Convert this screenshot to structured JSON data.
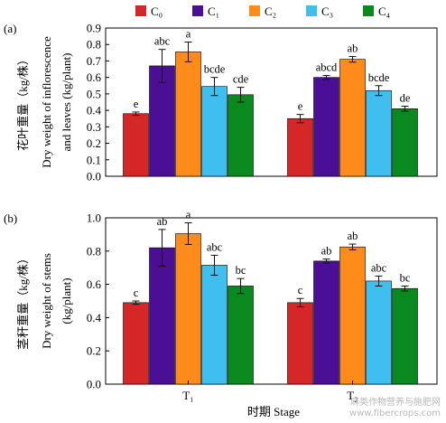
{
  "legend": [
    {
      "name": "C₀",
      "color": "#d62728"
    },
    {
      "name": "C₁",
      "color": "#4b0f96"
    },
    {
      "name": "C₂",
      "color": "#ff8c1a"
    },
    {
      "name": "C₃",
      "color": "#3fbef0"
    },
    {
      "name": "C₄",
      "color": "#0a8a1e"
    }
  ],
  "xlabel": "时期 Stage",
  "watermark": {
    "line1": "麻类作物营养与施肥网",
    "line2": "www.fibercrops.com"
  },
  "chart_data": [
    {
      "type": "bar",
      "panel_label": "(a)",
      "ylabel_cn": "花叶重量（kg/株）",
      "ylabel_en1": "Dry weight of inflorescence",
      "ylabel_en2": "and leaves (kg/plant)",
      "categories": [
        "T₁",
        "T₂"
      ],
      "ylim": [
        0,
        0.9
      ],
      "yticks": [
        "0.0",
        "0.1",
        "0.2",
        "0.3",
        "0.4",
        "0.5",
        "0.6",
        "0.7",
        "0.8",
        "0.9"
      ],
      "series": [
        {
          "name": "C₀",
          "values": [
            0.38,
            0.35
          ],
          "errors": [
            0.01,
            0.025
          ],
          "labels": [
            "e",
            "e"
          ]
        },
        {
          "name": "C₁",
          "values": [
            0.67,
            0.6
          ],
          "errors": [
            0.1,
            0.012
          ],
          "labels": [
            "abc",
            "abcd"
          ]
        },
        {
          "name": "C₂",
          "values": [
            0.755,
            0.71
          ],
          "errors": [
            0.06,
            0.017
          ],
          "labels": [
            "a",
            "ab"
          ]
        },
        {
          "name": "C₃",
          "values": [
            0.545,
            0.52
          ],
          "errors": [
            0.055,
            0.03
          ],
          "labels": [
            "bcde",
            "bcde"
          ]
        },
        {
          "name": "C₄",
          "values": [
            0.495,
            0.41
          ],
          "errors": [
            0.045,
            0.015
          ],
          "labels": [
            "cde",
            "de"
          ]
        }
      ]
    },
    {
      "type": "bar",
      "panel_label": "(b)",
      "ylabel_cn": "茎秆重量（kg/株）",
      "ylabel_en1": "Dry weight of stems",
      "ylabel_en2": "(kg/plant)",
      "categories": [
        "T₁",
        "T₂"
      ],
      "ylim": [
        0,
        1.0
      ],
      "yticks": [
        "0.0",
        "0.2",
        "0.4",
        "0.6",
        "0.8",
        "1.0"
      ],
      "series": [
        {
          "name": "C₀",
          "values": [
            0.49,
            0.49
          ],
          "errors": [
            0.01,
            0.025
          ],
          "labels": [
            "c",
            "c"
          ]
        },
        {
          "name": "C₁",
          "values": [
            0.82,
            0.74
          ],
          "errors": [
            0.11,
            0.012
          ],
          "labels": [
            "ab",
            "ab"
          ]
        },
        {
          "name": "C₂",
          "values": [
            0.905,
            0.825
          ],
          "errors": [
            0.065,
            0.017
          ],
          "labels": [
            "a",
            "ab"
          ]
        },
        {
          "name": "C₃",
          "values": [
            0.715,
            0.62
          ],
          "errors": [
            0.06,
            0.03
          ],
          "labels": [
            "abc",
            "abc"
          ]
        },
        {
          "name": "C₄",
          "values": [
            0.59,
            0.575
          ],
          "errors": [
            0.045,
            0.015
          ],
          "labels": [
            "bc",
            "bc"
          ]
        }
      ]
    }
  ]
}
